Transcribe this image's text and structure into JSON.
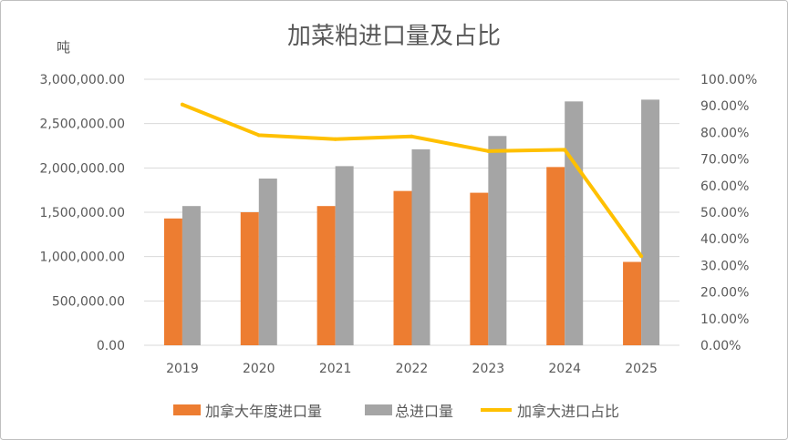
{
  "chart_data": {
    "type": "bar",
    "title": "加菜粕进口量及占比",
    "ylabel": "吨",
    "xlabel": "",
    "categories": [
      "2019",
      "2020",
      "2021",
      "2022",
      "2023",
      "2024",
      "2025"
    ],
    "ylim": [
      0,
      3000000
    ],
    "y2lim": [
      0,
      100
    ],
    "y_tick_labels": [
      "0.00",
      "500,000.00",
      "1,000,000.00",
      "1,500,000.00",
      "2,000,000.00",
      "2,500,000.00",
      "3,000,000.00"
    ],
    "y2_tick_labels": [
      "0.00%",
      "10.00%",
      "20.00%",
      "30.00%",
      "40.00%",
      "50.00%",
      "60.00%",
      "70.00%",
      "80.00%",
      "90.00%",
      "100.00%"
    ],
    "grid": true,
    "legend": "bottom",
    "series": [
      {
        "name": "加拿大年度进口量",
        "type": "bar",
        "axis": "left",
        "color": "#ED7D31",
        "values": [
          1430000,
          1500000,
          1570000,
          1740000,
          1720000,
          2010000,
          940000
        ]
      },
      {
        "name": "总进口量",
        "type": "bar",
        "axis": "left",
        "color": "#A5A5A5",
        "values": [
          1570000,
          1880000,
          2020000,
          2210000,
          2360000,
          2750000,
          2770000
        ]
      },
      {
        "name": "加拿大进口占比",
        "type": "line",
        "axis": "right",
        "color": "#FFC000",
        "values": [
          90.5,
          79.0,
          77.5,
          78.5,
          73.0,
          73.5,
          33.5
        ]
      }
    ]
  }
}
